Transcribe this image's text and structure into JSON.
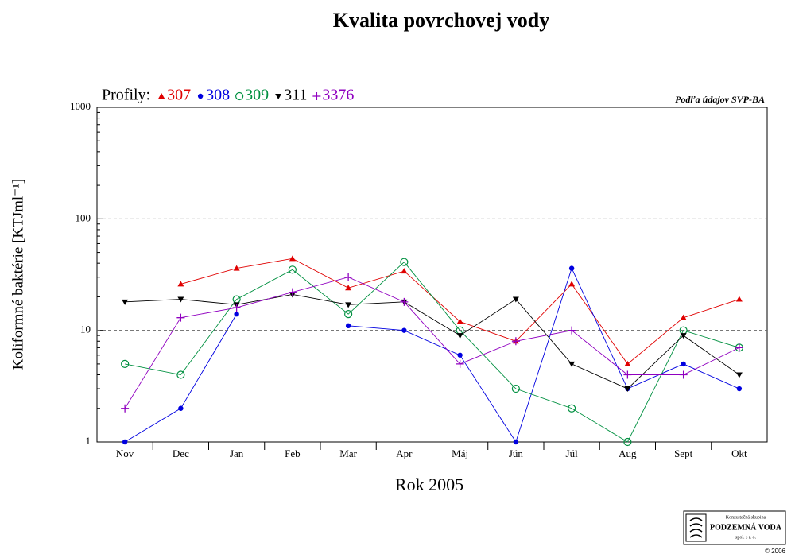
{
  "chart_data": {
    "type": "line",
    "title": "Kvalita povrchovej vody",
    "legend_title": "Profily:",
    "annotation": "Podľa údajov SVP-BA",
    "x_label": "Rok 2005",
    "y_label": "Koliformné baktérie [KTJml⁻¹]",
    "log_scale": true,
    "grid": true,
    "ylim": [
      1,
      1000
    ],
    "yticks": [
      1,
      10,
      100,
      1000
    ],
    "categories": [
      "Nov",
      "Dec",
      "Jan",
      "Feb",
      "Mar",
      "Apr",
      "Máj",
      "Jún",
      "Júl",
      "Aug",
      "Sept",
      "Okt"
    ],
    "series": [
      {
        "name": "307",
        "color": "#e00000",
        "marker": "triangle",
        "values": [
          null,
          26,
          36,
          44,
          24,
          34,
          12,
          8,
          26,
          5,
          13,
          19
        ]
      },
      {
        "name": "308",
        "color": "#0000e0",
        "marker": "circle",
        "values": [
          1,
          2,
          14,
          null,
          11,
          10,
          6,
          1,
          36,
          3,
          5,
          3
        ]
      },
      {
        "name": "309",
        "color": "#009040",
        "marker": "circle-open",
        "values": [
          5,
          4,
          19,
          35,
          14,
          41,
          10,
          3,
          2,
          1,
          10,
          7
        ]
      },
      {
        "name": "311",
        "color": "#000000",
        "marker": "triangle-down",
        "values": [
          18,
          19,
          17,
          21,
          17,
          18,
          9,
          19,
          5,
          3,
          9,
          4
        ]
      },
      {
        "name": "3376",
        "color": "#9000c0",
        "marker": "plus",
        "values": [
          2,
          13,
          16,
          22,
          30,
          18,
          5,
          8,
          10,
          4,
          4,
          7
        ]
      }
    ],
    "logo": {
      "line1": "Konzultačná skupina",
      "line2": "PODZEMNÁ VODA",
      "line3": "spol. s r. o.",
      "copyright": "© 2006"
    }
  }
}
